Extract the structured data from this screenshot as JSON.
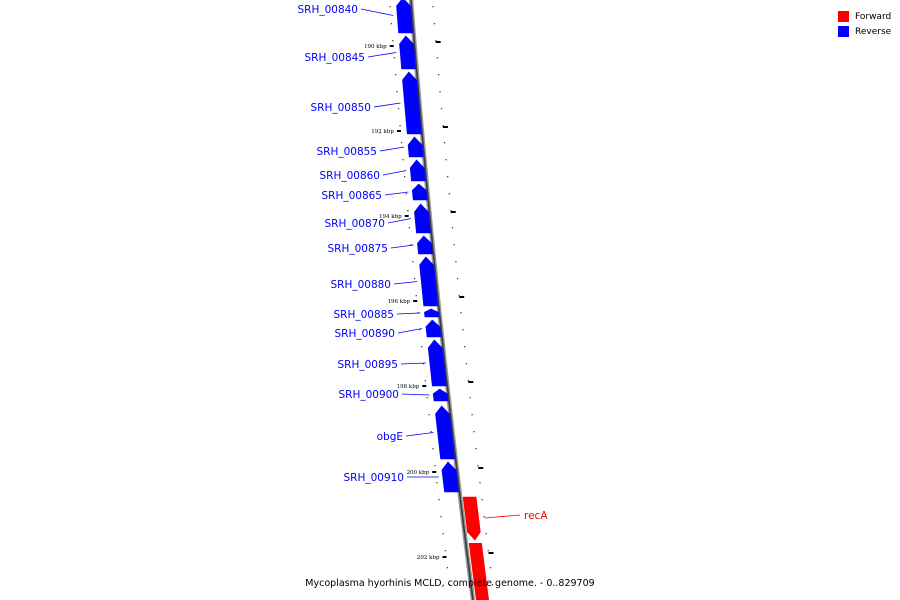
{
  "caption": "Mycoplasma hyorhinis MCLD, complete genome. - 0..829709",
  "legend": [
    {
      "label": "Forward",
      "color": "#ff0000"
    },
    {
      "label": "Reverse",
      "color": "#0000ff"
    }
  ],
  "ticks": [
    "190 kbp",
    "192 kbp",
    "194 kbp",
    "196 kbp",
    "198 kbp",
    "200 kbp",
    "202 kbp"
  ],
  "genes": [
    {
      "name": "SRH_00840",
      "strand": "reverse"
    },
    {
      "name": "SRH_00845",
      "strand": "reverse"
    },
    {
      "name": "SRH_00850",
      "strand": "reverse"
    },
    {
      "name": "SRH_00855",
      "strand": "reverse"
    },
    {
      "name": "SRH_00860",
      "strand": "reverse"
    },
    {
      "name": "SRH_00865",
      "strand": "reverse"
    },
    {
      "name": "SRH_00870",
      "strand": "reverse"
    },
    {
      "name": "SRH_00875",
      "strand": "reverse"
    },
    {
      "name": "SRH_00880",
      "strand": "reverse"
    },
    {
      "name": "SRH_00885",
      "strand": "reverse"
    },
    {
      "name": "SRH_00890",
      "strand": "reverse"
    },
    {
      "name": "SRH_00895",
      "strand": "reverse"
    },
    {
      "name": "SRH_00900",
      "strand": "reverse"
    },
    {
      "name": "obgE",
      "strand": "reverse"
    },
    {
      "name": "SRH_00910",
      "strand": "reverse"
    },
    {
      "name": "recA",
      "strand": "forward"
    }
  ]
}
